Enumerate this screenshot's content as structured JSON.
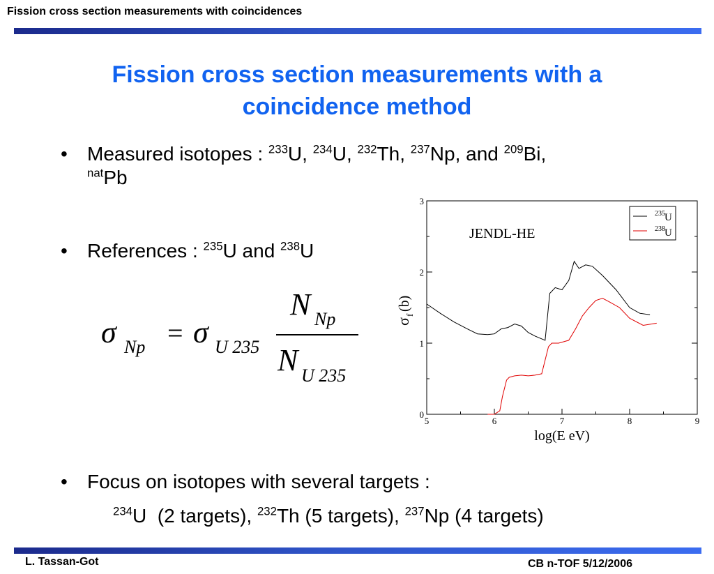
{
  "header": {
    "title": "Fission cross section measurements with coincidences"
  },
  "slide": {
    "title_line1": "Fission cross section measurements with a",
    "title_line2": "coincidence method",
    "bullet1": {
      "text": "Measured isotopes : ",
      "isotopes": [
        {
          "mass": "233",
          "sym": "U",
          "sep": ", "
        },
        {
          "mass": "234",
          "sym": "U",
          "sep": ", "
        },
        {
          "mass": "232",
          "sym": "Th",
          "sep": ", "
        },
        {
          "mass": "237",
          "sym": "Np",
          "sep": ", and "
        },
        {
          "mass": "209",
          "sym": "Bi",
          "sep": ","
        }
      ],
      "line2_mass": "nat",
      "line2_sym": "Pb"
    },
    "bullet2": {
      "text": "References : ",
      "m1": "235",
      "s1": "U",
      "and": " and ",
      "m2": "238",
      "s2": "U"
    },
    "formula": {
      "lhs_sym": "σ",
      "lhs_sub": "Np",
      "eq": "=",
      "rhs_sym": "σ",
      "rhs_sub": "U 235",
      "num": "N",
      "num_sub": "Np",
      "den": "N",
      "den_sub": "U 235"
    },
    "bullet3": {
      "text": "Focus on isotopes with several targets :",
      "m1": "234",
      "s1": "U",
      "t1": "  (2 targets), ",
      "m2": "232",
      "s2": "Th",
      "t2": " (5 targets), ",
      "m3": "237",
      "s3": "Np",
      "t3": " (4 targets)"
    }
  },
  "footer": {
    "author": "L. Tassan-Got",
    "meeting": "CB n-TOF 5/12/2006"
  },
  "chart_data": {
    "type": "line",
    "annotation": "JENDL-HE",
    "xlabel": "log(E eV)",
    "ylabel": "σ",
    "ylabel_sub": "f",
    "ylabel_unit": " (b)",
    "xlim": [
      5,
      9
    ],
    "ylim": [
      0,
      3
    ],
    "xticks": [
      "5",
      "6",
      "7",
      "8",
      "9"
    ],
    "yticks": [
      "0",
      "1",
      "2",
      "3"
    ],
    "legend_position": "top-right",
    "series": [
      {
        "name_mass": "235",
        "name_sym": "U",
        "color": "#000000",
        "x": [
          5.0,
          5.2,
          5.4,
          5.6,
          5.75,
          5.9,
          6.0,
          6.1,
          6.2,
          6.3,
          6.4,
          6.5,
          6.6,
          6.75,
          6.82,
          6.9,
          7.0,
          7.1,
          7.18,
          7.25,
          7.35,
          7.45,
          7.6,
          7.8,
          8.0,
          8.15,
          8.3
        ],
        "y": [
          1.55,
          1.42,
          1.3,
          1.2,
          1.13,
          1.12,
          1.13,
          1.2,
          1.22,
          1.27,
          1.24,
          1.15,
          1.1,
          1.04,
          1.7,
          1.78,
          1.75,
          1.88,
          2.15,
          2.05,
          2.1,
          2.08,
          1.95,
          1.75,
          1.5,
          1.42,
          1.4
        ]
      },
      {
        "name_mass": "238",
        "name_sym": "U",
        "color": "#e00000",
        "x": [
          5.9,
          6.0,
          6.08,
          6.12,
          6.18,
          6.22,
          6.3,
          6.4,
          6.5,
          6.6,
          6.7,
          6.8,
          6.85,
          6.95,
          7.1,
          7.2,
          7.3,
          7.4,
          7.5,
          7.6,
          7.7,
          7.85,
          8.0,
          8.2,
          8.4
        ],
        "y": [
          0.0,
          0.0,
          0.05,
          0.25,
          0.48,
          0.52,
          0.54,
          0.55,
          0.54,
          0.55,
          0.57,
          0.95,
          1.0,
          1.0,
          1.04,
          1.2,
          1.38,
          1.5,
          1.6,
          1.63,
          1.58,
          1.5,
          1.35,
          1.25,
          1.28
        ]
      }
    ]
  }
}
